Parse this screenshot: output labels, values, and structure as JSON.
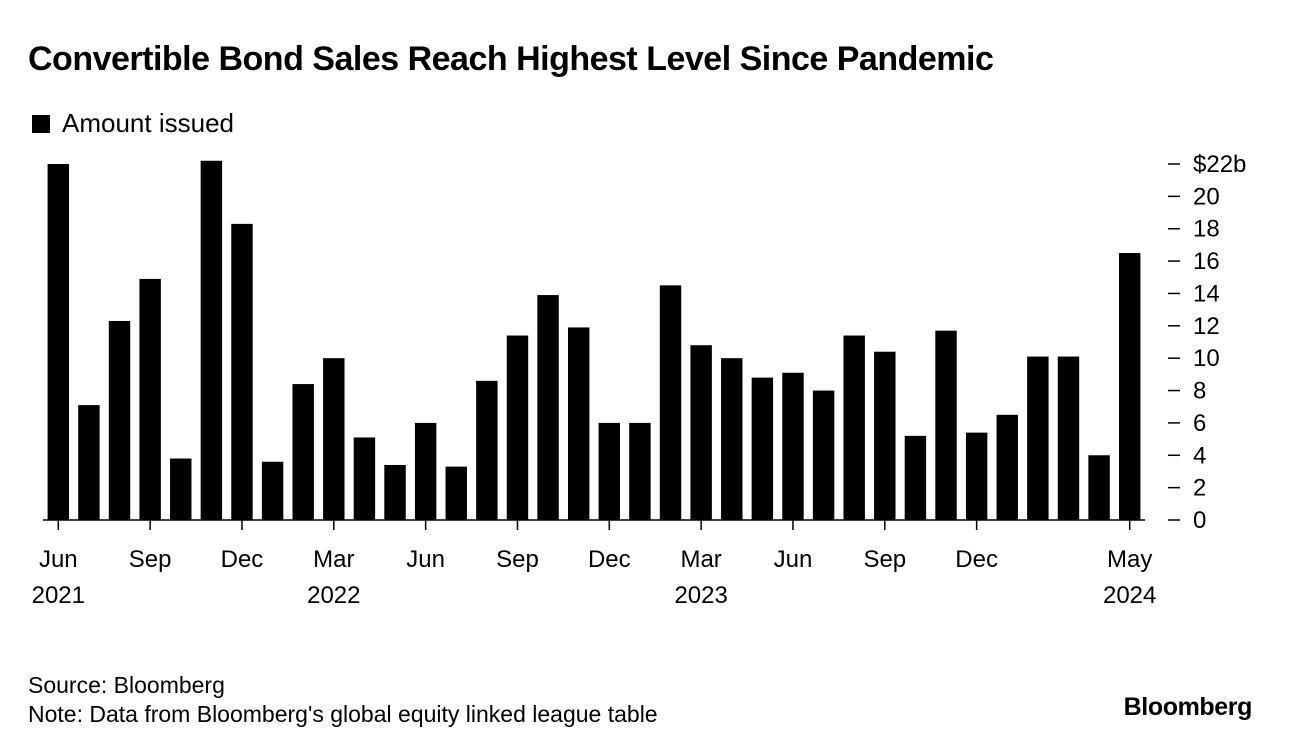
{
  "chart_data": {
    "type": "bar",
    "title": "Convertible Bond Sales Reach Highest Level Since Pandemic",
    "legend": [
      "Amount issued"
    ],
    "series": [
      {
        "name": "Amount issued",
        "values": [
          22.0,
          7.1,
          12.3,
          14.9,
          3.8,
          22.2,
          18.3,
          3.6,
          8.4,
          10.0,
          5.1,
          3.4,
          6.0,
          3.3,
          8.6,
          11.4,
          13.9,
          11.9,
          6.0,
          6.0,
          14.5,
          10.8,
          10.0,
          8.8,
          9.1,
          8.0,
          11.4,
          10.4,
          5.2,
          11.7,
          5.4,
          6.5,
          10.1,
          10.1,
          4.0,
          16.5
        ]
      }
    ],
    "categories": [
      "Jun 2021",
      "Jul 2021",
      "Aug 2021",
      "Sep 2021",
      "Oct 2021",
      "Nov 2021",
      "Dec 2021",
      "Jan 2022",
      "Feb 2022",
      "Mar 2022",
      "Apr 2022",
      "May 2022",
      "Jun 2022",
      "Jul 2022",
      "Aug 2022",
      "Sep 2022",
      "Oct 2022",
      "Nov 2022",
      "Dec 2022",
      "Jan 2023",
      "Feb 2023",
      "Mar 2023",
      "Apr 2023",
      "May 2023",
      "Jun 2023",
      "Jul 2023",
      "Aug 2023",
      "Sep 2023",
      "Oct 2023",
      "Nov 2023",
      "Dec 2023",
      "Jan 2024",
      "Feb 2024",
      "Mar 2024",
      "Apr 2024",
      "May 2024"
    ],
    "ylim": [
      0,
      22
    ],
    "y_ticks": [
      {
        "value": 22,
        "label": "$22b"
      },
      {
        "value": 20,
        "label": "20"
      },
      {
        "value": 18,
        "label": "18"
      },
      {
        "value": 16,
        "label": "16"
      },
      {
        "value": 14,
        "label": "14"
      },
      {
        "value": 12,
        "label": "12"
      },
      {
        "value": 10,
        "label": "10"
      },
      {
        "value": 8,
        "label": "8"
      },
      {
        "value": 6,
        "label": "6"
      },
      {
        "value": 4,
        "label": "4"
      },
      {
        "value": 2,
        "label": "2"
      },
      {
        "value": 0,
        "label": "0"
      }
    ],
    "x_ticks": [
      {
        "index": 0,
        "month": "Jun",
        "year": "2021"
      },
      {
        "index": 3,
        "month": "Sep",
        "year": ""
      },
      {
        "index": 6,
        "month": "Dec",
        "year": ""
      },
      {
        "index": 9,
        "month": "Mar",
        "year": "2022"
      },
      {
        "index": 12,
        "month": "Jun",
        "year": ""
      },
      {
        "index": 15,
        "month": "Sep",
        "year": ""
      },
      {
        "index": 18,
        "month": "Dec",
        "year": ""
      },
      {
        "index": 21,
        "month": "Mar",
        "year": "2023"
      },
      {
        "index": 24,
        "month": "Jun",
        "year": ""
      },
      {
        "index": 27,
        "month": "Sep",
        "year": ""
      },
      {
        "index": 30,
        "month": "Dec",
        "year": ""
      },
      {
        "index": 35,
        "month": "May",
        "year": "2024"
      }
    ],
    "y_axis_side": "right",
    "grid": false,
    "bar_color": "#000000"
  },
  "footer": {
    "source": "Source: Bloomberg",
    "note": "Note: Data from Bloomberg's global equity linked league table"
  },
  "brand": "Bloomberg"
}
